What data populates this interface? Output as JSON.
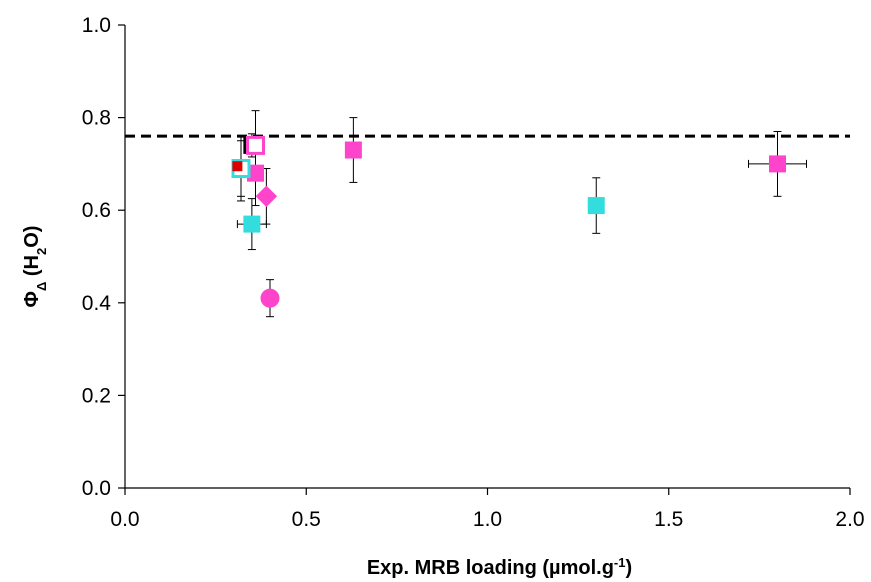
{
  "chart_data": {
    "type": "scatter",
    "title": "",
    "xlabel": {
      "prefix": "Exp. MRB loading (µmol.g",
      "sup": "-1",
      "suffix": ")"
    },
    "ylabel": {
      "symbol": "Φ",
      "sub": "Δ",
      "prefix": " (H",
      "sub2": "2",
      "suffix": "O)"
    },
    "xlim": [
      0.0,
      2.0
    ],
    "ylim": [
      0.0,
      1.0
    ],
    "x_ticks": [
      "0.0",
      "0.5",
      "1.0",
      "1.5",
      "2.0"
    ],
    "y_ticks": [
      "0.0",
      "0.2",
      "0.4",
      "0.6",
      "0.8",
      "1.0"
    ],
    "grid": false,
    "reference_line": {
      "y": 0.76,
      "style": "dashed",
      "color": "#000000"
    },
    "points": [
      {
        "x": 0.35,
        "y": 0.74,
        "marker": "square",
        "fill": "#000000",
        "edge": "#000000",
        "yerr": 0.025,
        "xerr": 0.0
      },
      {
        "x": 0.32,
        "y": 0.69,
        "marker": "square",
        "fill": "#ff00ff",
        "edge": "#ff00ff",
        "yerr": 0.07,
        "xerr": 0.0
      },
      {
        "x": 0.36,
        "y": 0.68,
        "marker": "square",
        "fill": "#ff44cc",
        "edge": "#ff44cc",
        "yerr": 0.07,
        "xerr": 0.0
      },
      {
        "x": 0.32,
        "y": 0.69,
        "marker": "square",
        "fill": "#ffffff",
        "edge": "#33dddd",
        "yerr": 0.06,
        "xerr": 0.0
      },
      {
        "x": 0.31,
        "y": 0.695,
        "marker": "square-small",
        "fill": "#dd0000",
        "edge": "#dd0000",
        "yerr": 0.0,
        "xerr": 0.0
      },
      {
        "x": 0.36,
        "y": 0.74,
        "marker": "square",
        "fill": "#ffffff",
        "edge": "#ff44cc",
        "yerr": 0.075,
        "xerr": 0.0
      },
      {
        "x": 0.39,
        "y": 0.63,
        "marker": "diamond",
        "fill": "#ff44cc",
        "edge": "#ff44cc",
        "yerr": 0.06,
        "xerr": 0.0
      },
      {
        "x": 0.35,
        "y": 0.57,
        "marker": "square",
        "fill": "#33dddd",
        "edge": "#33dddd",
        "yerr": 0.055,
        "xerr": 0.04
      },
      {
        "x": 0.4,
        "y": 0.41,
        "marker": "circle",
        "fill": "#ff44cc",
        "edge": "#ff44cc",
        "yerr": 0.04,
        "xerr": 0.0
      },
      {
        "x": 0.63,
        "y": 0.73,
        "marker": "square",
        "fill": "#ff44cc",
        "edge": "#ff44cc",
        "yerr": 0.07,
        "xerr": 0.0
      },
      {
        "x": 1.3,
        "y": 0.61,
        "marker": "square",
        "fill": "#33dddd",
        "edge": "#33dddd",
        "yerr": 0.06,
        "xerr": 0.0
      },
      {
        "x": 1.8,
        "y": 0.7,
        "marker": "square",
        "fill": "#ff44cc",
        "edge": "#ff44cc",
        "yerr": 0.07,
        "xerr": 0.08
      }
    ]
  }
}
